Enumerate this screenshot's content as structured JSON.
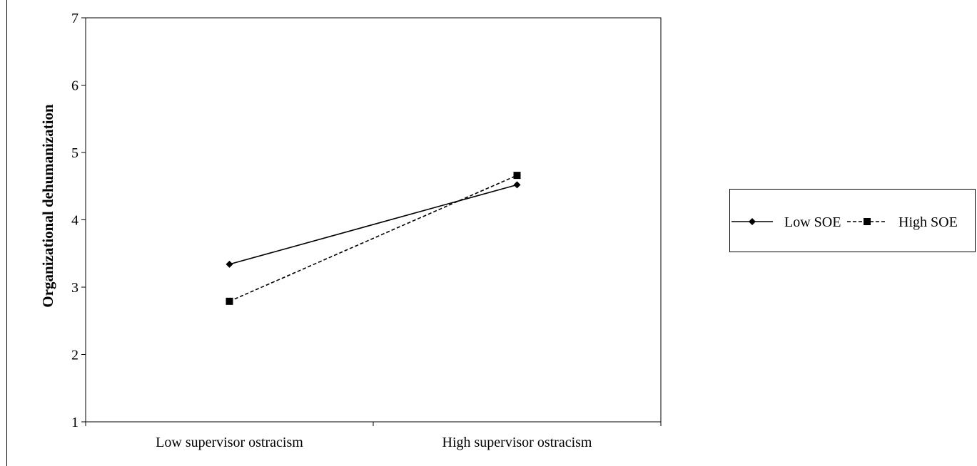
{
  "chart_data": {
    "type": "line",
    "categories": [
      "Low supervisor ostracism",
      "High supervisor ostracism"
    ],
    "series": [
      {
        "name": "Low SOE",
        "values": [
          3.34,
          4.52
        ],
        "style": "solid",
        "marker": "diamond"
      },
      {
        "name": "High SOE",
        "values": [
          2.79,
          4.66
        ],
        "style": "dashed",
        "marker": "square"
      }
    ],
    "ylabel": "Organizational dehumanization",
    "xlabel": "",
    "ylim": [
      1,
      7
    ],
    "yticks": [
      1,
      2,
      3,
      4,
      5,
      6,
      7
    ],
    "grid": false,
    "legend_position": "right",
    "line_color": "#000000"
  }
}
